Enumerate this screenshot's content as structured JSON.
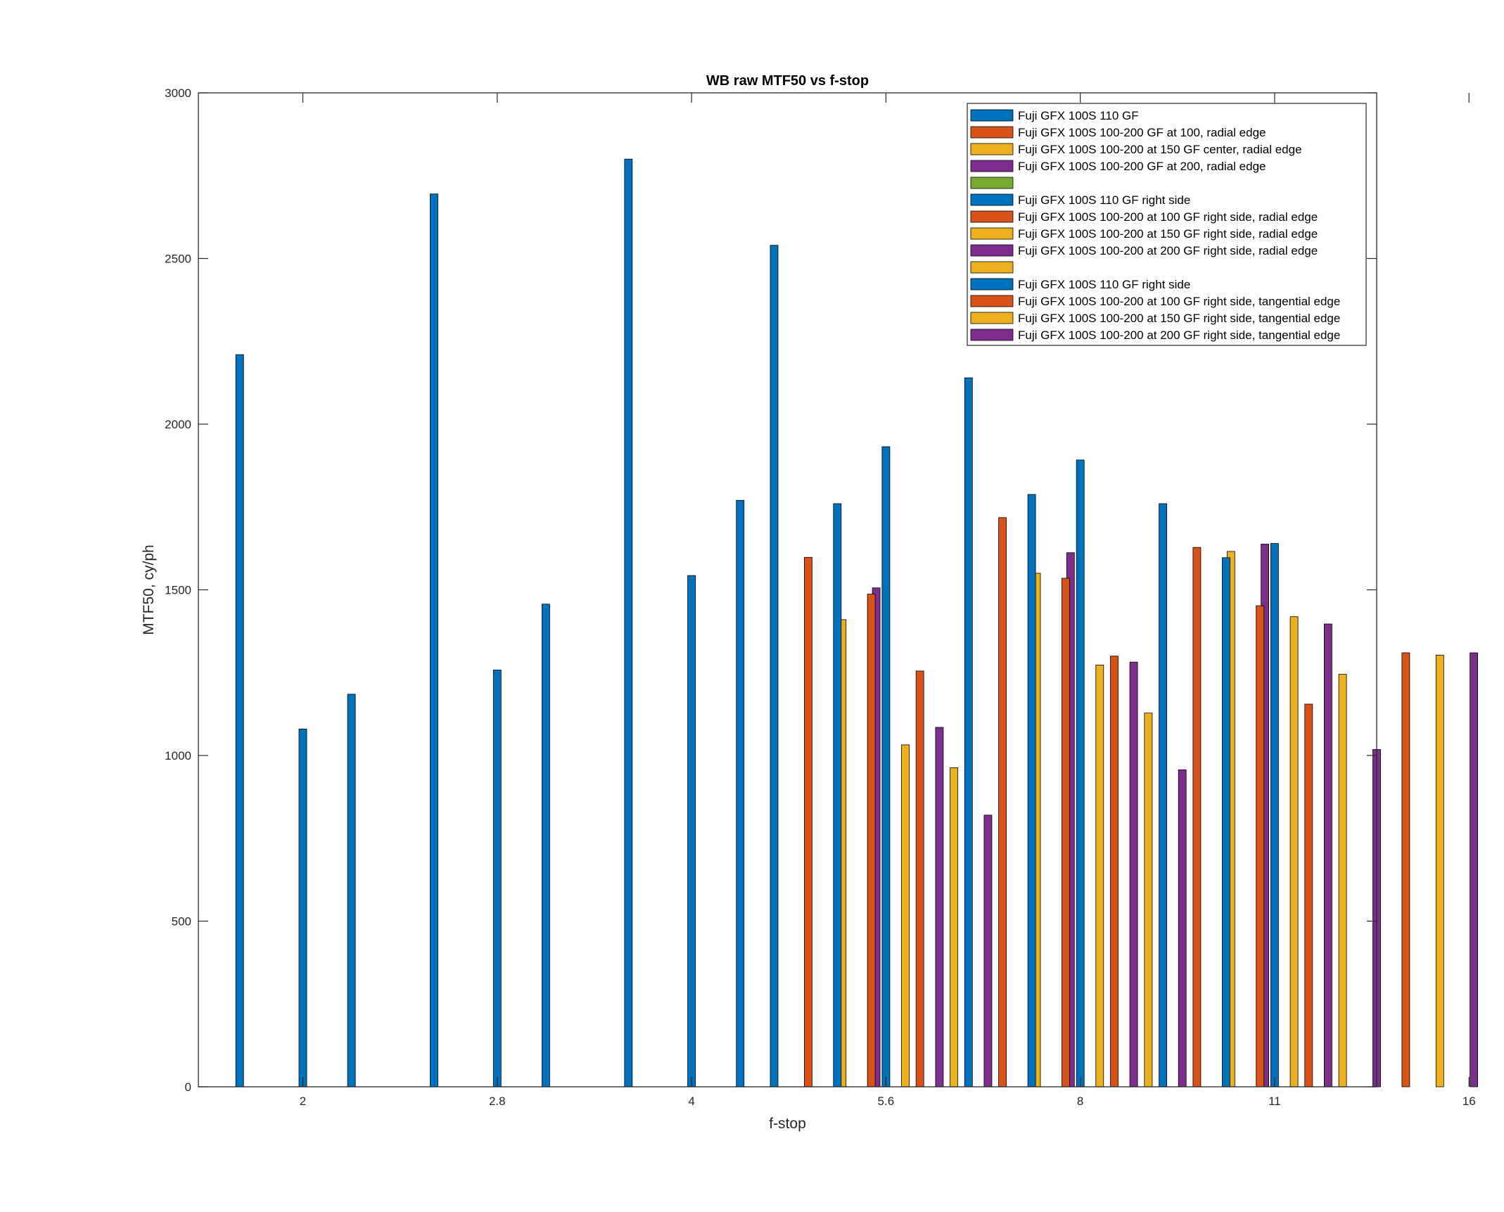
{
  "chart_data": {
    "type": "bar",
    "title": "WB raw MTF50 vs f-stop",
    "xlabel": "f-stop",
    "ylabel": "MTF50, cy/ph",
    "ylim": [
      0,
      3000
    ],
    "yticks": [
      0,
      500,
      1000,
      1500,
      2000,
      2500,
      3000
    ],
    "xticklabels": [
      "2",
      "2.8",
      "4",
      "5.6",
      "8",
      "11",
      "16"
    ],
    "xlim": [
      1.785,
      4.21
    ],
    "grid": false,
    "legend_position": "top-right",
    "group_offsets": [
      -0.1,
      -0.03,
      0.04,
      0.11
    ],
    "series": [
      {
        "name": "Fuji GFX 100S 110 GF",
        "color": "#0072BD",
        "groups": [
          [
            1.87,
            2210
          ],
          [
            2.0,
            1080
          ],
          [
            2.1,
            1185
          ],
          [
            2.27,
            2695
          ],
          [
            2.4,
            1258
          ],
          [
            2.5,
            1457
          ],
          [
            2.67,
            2800
          ],
          [
            2.8,
            1543
          ],
          [
            2.9,
            1770
          ]
        ]
      },
      {
        "name": "Fuji GFX 100S 100-200 GF at 100, radial edge",
        "color": "#D95319",
        "groups": []
      },
      {
        "name": "Fuji GFX 100S 100-200 at 150 GF center, radial edge",
        "color": "#EDB120",
        "groups": []
      },
      {
        "name": "Fuji GFX 100S 100-200 GF at 200, radial edge",
        "color": "#7E2F8E",
        "groups": []
      },
      {
        "name": "",
        "color": "#77AC30",
        "groups": []
      },
      {
        "name": "Fuji GFX 100S 110 GF right side",
        "color": "#0072BD",
        "groups": [
          [
            3.07,
            [
              2540,
              1598,
              1410,
              1506
            ]
          ],
          [
            3.2,
            [
              1760,
              1487,
              1032,
              1085
            ]
          ],
          [
            3.3,
            [
              1932,
              1255,
              963,
              820
            ]
          ]
        ]
      },
      {
        "name": "Fuji GFX 100S 100-200 at 100 GF right side, radial edge",
        "color": "#D95319",
        "groups": []
      },
      {
        "name": "Fuji GFX 100S 100-200 at 150 GF right side, radial edge",
        "color": "#EDB120",
        "groups": []
      },
      {
        "name": "Fuji GFX 100S 100-200 at 200 GF right side, radial edge",
        "color": "#7E2F8E",
        "groups": []
      },
      {
        "name": "",
        "color": "#EDB120",
        "groups": []
      },
      {
        "name": "Fuji GFX 100S 110 GF right side",
        "color": "#0072BD",
        "groups": [
          [
            3.47,
            [
              2140,
              1718,
              1550,
              1612
            ]
          ],
          [
            3.6,
            [
              1788,
              1535,
              1273,
              1282
            ]
          ],
          [
            3.7,
            [
              1892,
              1300,
              1128,
              957
            ]
          ],
          [
            3.87,
            [
              1760,
              1628,
              1616,
              1638
            ]
          ],
          [
            4.0,
            [
              1597,
              1452,
              1419,
              1397
            ]
          ],
          [
            4.1,
            [
              1640,
              1155,
              1245,
              1018
            ]
          ],
          [
            4.3,
            [
              null,
              1310,
              1303,
              1310
            ]
          ]
        ]
      },
      {
        "name": "Fuji GFX 100S 100-200 at 100 GF right side, tangential edge",
        "color": "#D95319",
        "groups": []
      },
      {
        "name": "Fuji GFX 100S 100-200 at 150 GF right side, tangential edge",
        "color": "#EDB120",
        "groups": []
      },
      {
        "name": "Fuji GFX 100S 100-200 at 200 GF right side, tangential edge",
        "color": "#7E2F8E",
        "groups": []
      }
    ]
  }
}
